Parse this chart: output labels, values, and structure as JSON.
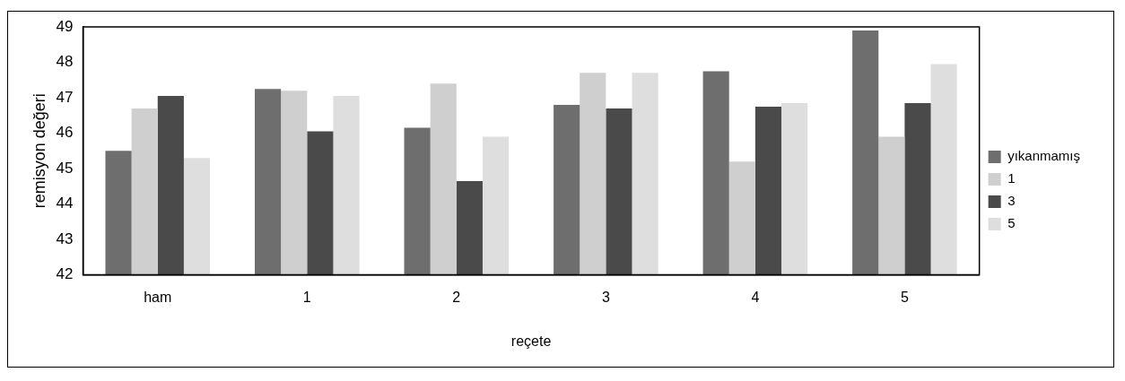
{
  "chart_data": {
    "type": "bar",
    "xlabel": "reçete",
    "ylabel": "remisyon değeri",
    "categories": [
      "ham",
      "1",
      "2",
      "3",
      "4",
      "5"
    ],
    "series": [
      {
        "name": "yıkanmamış",
        "color": "#6e6e6e",
        "values": [
          45.5,
          47.25,
          46.15,
          46.8,
          47.75,
          48.9
        ]
      },
      {
        "name": "1",
        "color": "#cfcfcf",
        "values": [
          46.7,
          47.2,
          47.4,
          47.7,
          45.2,
          45.9
        ]
      },
      {
        "name": "3",
        "color": "#4a4a4a",
        "values": [
          47.05,
          46.05,
          44.65,
          46.7,
          46.75,
          46.85
        ]
      },
      {
        "name": "5",
        "color": "#dedede",
        "values": [
          45.3,
          47.05,
          45.9,
          47.7,
          46.85,
          47.95
        ]
      }
    ],
    "ylim": [
      42,
      49
    ],
    "yticks": [
      42,
      43,
      44,
      45,
      46,
      47,
      48,
      49
    ],
    "grid": false,
    "legend": "right"
  }
}
